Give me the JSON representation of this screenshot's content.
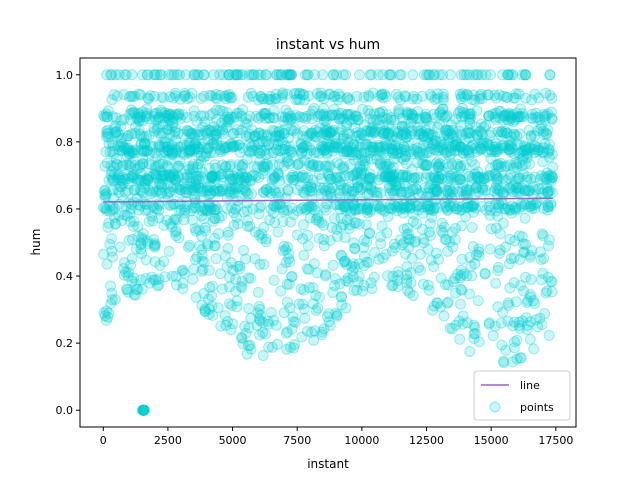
{
  "chart_data": {
    "type": "scatter",
    "title": "instant vs hum",
    "xlabel": "instant",
    "ylabel": "hum",
    "xlim": [
      -900,
      18280
    ],
    "ylim": [
      -0.05,
      1.05
    ],
    "xticks": [
      0,
      2500,
      5000,
      7500,
      10000,
      12500,
      15000,
      17500
    ],
    "yticks": [
      0.0,
      0.2,
      0.4,
      0.6,
      0.8,
      1.0
    ],
    "xtick_labels": [
      "0",
      "2500",
      "5000",
      "7500",
      "10000",
      "12500",
      "15000",
      "17500"
    ],
    "ytick_labels": [
      "0.0",
      "0.2",
      "0.4",
      "0.6",
      "0.8",
      "1.0"
    ],
    "grid": false,
    "legend_position": "bottom-right",
    "series": [
      {
        "name": "line",
        "kind": "line",
        "color": "#9467bd",
        "x": [
          1,
          17379
        ],
        "y": [
          0.621,
          0.632
        ]
      },
      {
        "name": "points",
        "kind": "scatter",
        "color": "#00ced1",
        "opacity": 0.2,
        "n_points": 17379,
        "x_range": [
          1,
          17379
        ],
        "y_range": [
          0.0,
          1.0
        ],
        "humidity_bands": [
          0.94,
          0.93,
          0.88,
          0.87,
          0.83,
          0.82,
          0.79,
          0.78,
          0.77,
          0.73,
          0.7,
          0.69,
          0.66,
          0.65,
          0.61,
          0.6
        ],
        "humidity_bands_at_one": [
          1.0
        ],
        "zero_cluster_x": [
          1520,
          1590
        ]
      }
    ]
  }
}
